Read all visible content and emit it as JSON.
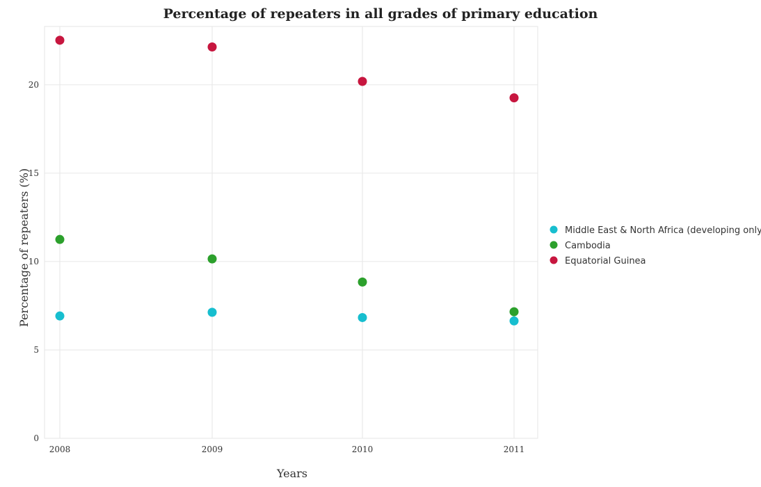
{
  "chart_data": {
    "type": "scatter",
    "title": "Percentage of repeaters in all grades of primary education",
    "xlabel": "Years",
    "ylabel": "Percentage of repeaters (%)",
    "categories": [
      "2008",
      "2009",
      "2010",
      "2011"
    ],
    "ylim": [
      0,
      23.3
    ],
    "yticks": [
      0,
      5,
      10,
      15,
      20
    ],
    "grid": true,
    "legend_position": "right",
    "series": [
      {
        "name": "Middle East & North Africa (developing only)",
        "color": "#17becf",
        "values": [
          6.92,
          7.13,
          6.83,
          6.64
        ]
      },
      {
        "name": "Cambodia",
        "color": "#2ca02c",
        "values": [
          11.25,
          10.15,
          8.84,
          7.16
        ]
      },
      {
        "name": "Equatorial Guinea",
        "color": "#c7163f",
        "values": [
          22.52,
          22.14,
          20.19,
          19.26
        ]
      }
    ]
  }
}
